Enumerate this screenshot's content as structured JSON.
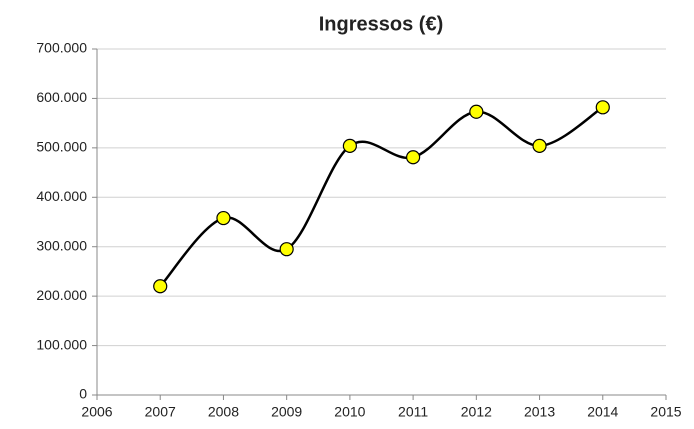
{
  "chart_data": {
    "type": "line",
    "title": "Ingressos (€)",
    "x": [
      2007,
      2008,
      2009,
      2010,
      2011,
      2012,
      2013,
      2014
    ],
    "series": [
      {
        "name": "Ingressos",
        "color": "#ffff00",
        "values": [
          220000,
          358000,
          295000,
          504000,
          481000,
          573000,
          504000,
          582000
        ]
      }
    ],
    "xlim": [
      2006,
      2015
    ],
    "xticks": [
      2006,
      2007,
      2008,
      2009,
      2010,
      2011,
      2012,
      2013,
      2014,
      2015
    ],
    "ylim": [
      0,
      700000
    ],
    "yticks": [
      0,
      {
        "value": 100000,
        "label": "100.000"
      },
      {
        "value": 200000,
        "label": "200.000"
      },
      {
        "value": 300000,
        "label": "300.000"
      },
      {
        "value": 400000,
        "label": "400.000"
      },
      {
        "value": 500000,
        "label": "500.000"
      },
      {
        "value": 600000,
        "label": "600.000"
      },
      {
        "value": 700000,
        "label": "700.000"
      }
    ],
    "grid": true,
    "smooth": true
  }
}
